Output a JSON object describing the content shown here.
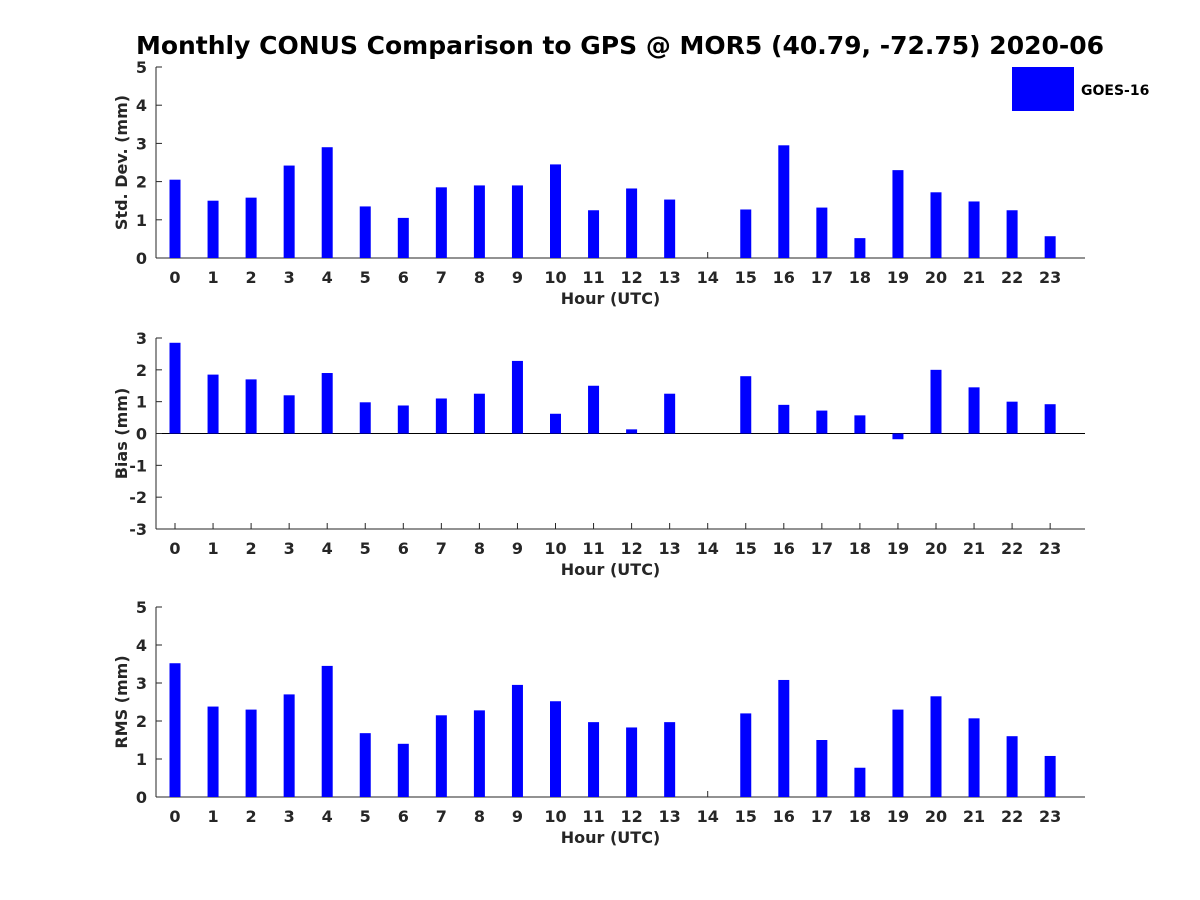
{
  "title": "Monthly CONUS Comparison to GPS @ MOR5 (40.79, -72.75) 2020-06",
  "colors": {
    "bar": "#0000ff",
    "axis": "#262626",
    "background": "#ffffff"
  },
  "legend": {
    "label": "GOES-16",
    "placement": "top-right"
  },
  "chart_data": [
    {
      "type": "bar",
      "name": "std-dev",
      "xlabel": "Hour (UTC)",
      "ylabel": "Std. Dev. (mm)",
      "ylim": [
        0,
        5
      ],
      "yticks": [
        0,
        1,
        2,
        3,
        4,
        5
      ],
      "categories": [
        "0",
        "1",
        "2",
        "3",
        "4",
        "5",
        "6",
        "7",
        "8",
        "9",
        "10",
        "11",
        "12",
        "13",
        "14",
        "15",
        "16",
        "17",
        "18",
        "19",
        "20",
        "21",
        "22",
        "23"
      ],
      "series": [
        {
          "name": "GOES-16",
          "values": [
            2.05,
            1.5,
            1.58,
            2.42,
            2.9,
            1.35,
            1.05,
            1.85,
            1.9,
            1.9,
            2.45,
            1.25,
            1.82,
            1.53,
            null,
            1.27,
            2.95,
            1.32,
            0.52,
            2.3,
            1.72,
            1.48,
            1.25,
            0.57
          ]
        }
      ]
    },
    {
      "type": "bar",
      "name": "bias",
      "xlabel": "Hour (UTC)",
      "ylabel": "Bias (mm)",
      "ylim": [
        -3,
        3
      ],
      "yticks": [
        -3,
        -2,
        -1,
        0,
        1,
        2,
        3
      ],
      "zero_line": true,
      "categories": [
        "0",
        "1",
        "2",
        "3",
        "4",
        "5",
        "6",
        "7",
        "8",
        "9",
        "10",
        "11",
        "12",
        "13",
        "14",
        "15",
        "16",
        "17",
        "18",
        "19",
        "20",
        "21",
        "22",
        "23"
      ],
      "series": [
        {
          "name": "GOES-16",
          "values": [
            2.85,
            1.85,
            1.7,
            1.2,
            1.9,
            0.98,
            0.88,
            1.1,
            1.25,
            2.28,
            0.62,
            1.5,
            0.13,
            1.25,
            null,
            1.8,
            0.9,
            0.72,
            0.57,
            -0.18,
            2.0,
            1.45,
            1.0,
            0.92
          ]
        }
      ]
    },
    {
      "type": "bar",
      "name": "rms",
      "xlabel": "Hour (UTC)",
      "ylabel": "RMS (mm)",
      "ylim": [
        0,
        5
      ],
      "yticks": [
        0,
        1,
        2,
        3,
        4,
        5
      ],
      "categories": [
        "0",
        "1",
        "2",
        "3",
        "4",
        "5",
        "6",
        "7",
        "8",
        "9",
        "10",
        "11",
        "12",
        "13",
        "14",
        "15",
        "16",
        "17",
        "18",
        "19",
        "20",
        "21",
        "22",
        "23"
      ],
      "series": [
        {
          "name": "GOES-16",
          "values": [
            3.52,
            2.38,
            2.3,
            2.7,
            3.45,
            1.68,
            1.4,
            2.15,
            2.28,
            2.95,
            2.52,
            1.97,
            1.83,
            1.97,
            null,
            2.2,
            3.08,
            1.5,
            0.77,
            2.3,
            2.65,
            2.07,
            1.6,
            1.08
          ]
        }
      ]
    }
  ]
}
